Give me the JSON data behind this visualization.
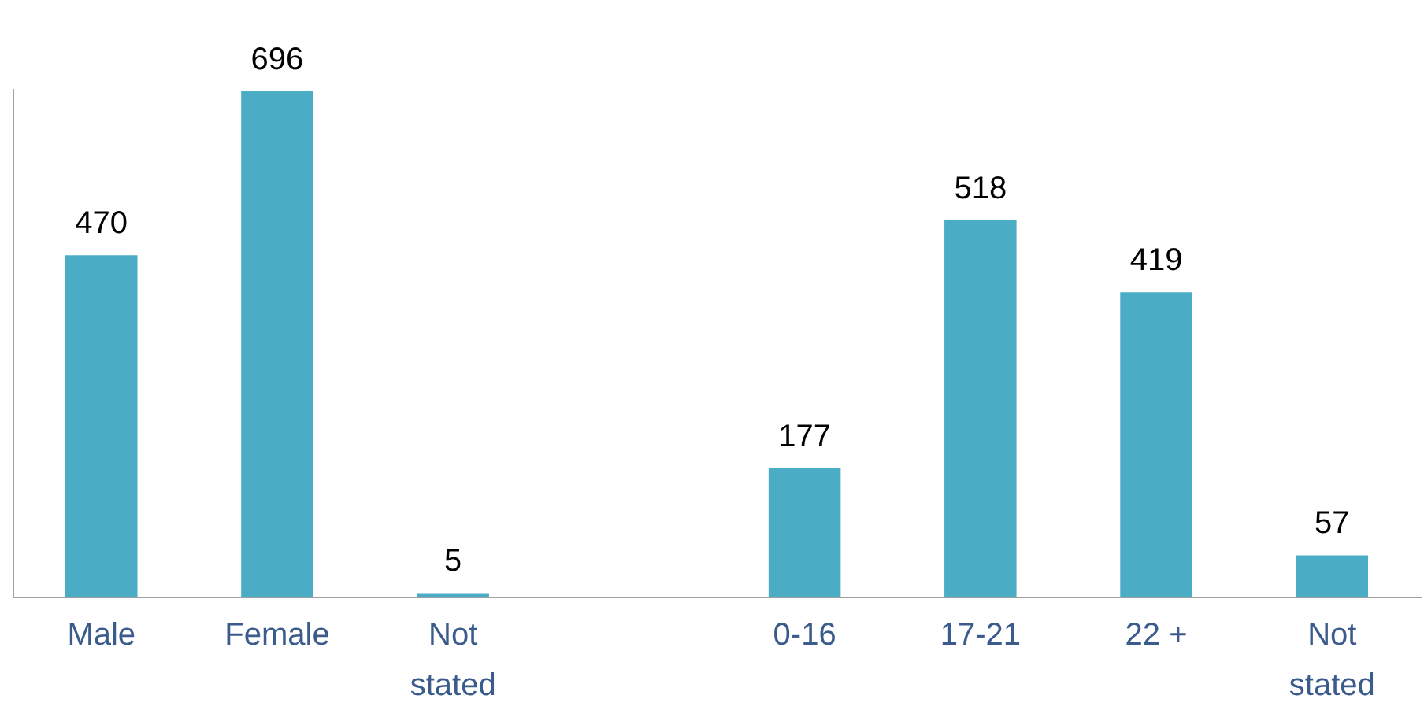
{
  "chart_data": {
    "type": "bar",
    "categories": [
      "Male",
      "Female",
      "Not stated",
      null,
      "0-16",
      "17-21",
      "22 +",
      "Not stated"
    ],
    "values": [
      470,
      696,
      5,
      null,
      177,
      518,
      419,
      57
    ],
    "color": "#4bacc6",
    "data_labels": true
  }
}
